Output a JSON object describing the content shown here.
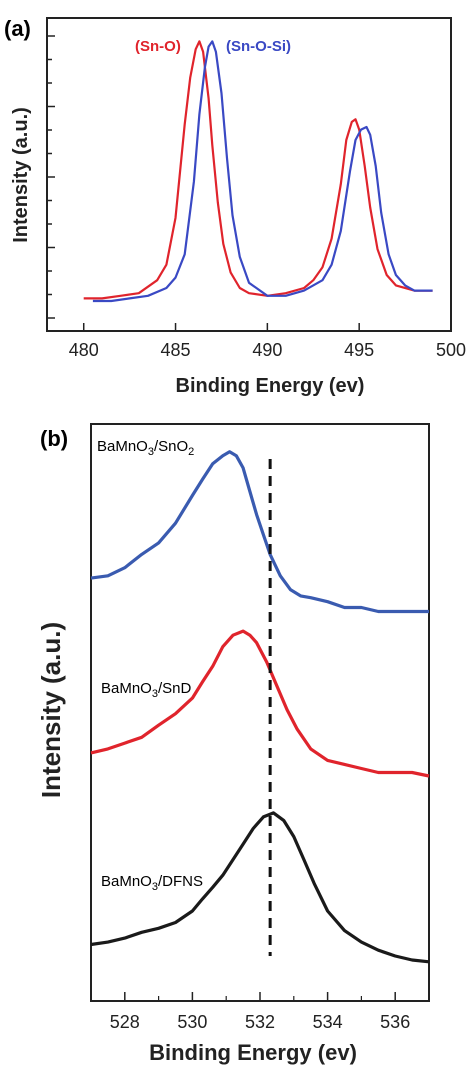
{
  "chart_data": [
    {
      "panel": "(a)",
      "type": "line",
      "xlabel": "Binding Energy (ev)",
      "ylabel": "Intensity (a.u.)",
      "xlim": [
        478,
        500
      ],
      "ylim": [
        0,
        1.09
      ],
      "xticks": [
        480,
        485,
        490,
        495,
        500
      ],
      "y_ticks_labeled": false,
      "grid": false,
      "series": [
        {
          "name": "(Sn-O)",
          "color": "#e0242c",
          "x": [
            480.0,
            481.0,
            482.0,
            483.0,
            484.0,
            484.5,
            485.0,
            485.5,
            485.8,
            486.1,
            486.3,
            486.5,
            486.8,
            487.0,
            487.3,
            487.6,
            488.0,
            488.5,
            489.0,
            490.0,
            491.0,
            492.0,
            492.5,
            493.0,
            493.5,
            494.0,
            494.3,
            494.6,
            494.8,
            495.0,
            495.3,
            495.6,
            496.0,
            496.5,
            497.0,
            498.0,
            499.0
          ],
          "values": [
            0.01,
            0.01,
            0.02,
            0.03,
            0.08,
            0.14,
            0.32,
            0.68,
            0.86,
            0.97,
            1.0,
            0.96,
            0.78,
            0.6,
            0.38,
            0.22,
            0.11,
            0.05,
            0.03,
            0.02,
            0.03,
            0.05,
            0.08,
            0.13,
            0.24,
            0.45,
            0.62,
            0.69,
            0.7,
            0.66,
            0.52,
            0.36,
            0.2,
            0.1,
            0.06,
            0.04,
            0.04
          ]
        },
        {
          "name": "(Sn-O-Si)",
          "color": "#3a49c4",
          "x": [
            480.5,
            481.5,
            482.5,
            483.5,
            484.5,
            485.0,
            485.5,
            486.0,
            486.3,
            486.6,
            486.8,
            487.0,
            487.2,
            487.5,
            487.8,
            488.1,
            488.5,
            489.0,
            490.0,
            491.0,
            492.0,
            493.0,
            493.5,
            494.0,
            494.5,
            494.8,
            495.1,
            495.4,
            495.6,
            495.9,
            496.2,
            496.6,
            497.0,
            497.5,
            498.0,
            499.0
          ],
          "values": [
            0.0,
            0.0,
            0.01,
            0.02,
            0.05,
            0.09,
            0.18,
            0.46,
            0.72,
            0.9,
            0.98,
            1.0,
            0.96,
            0.8,
            0.55,
            0.33,
            0.17,
            0.07,
            0.02,
            0.02,
            0.04,
            0.08,
            0.14,
            0.27,
            0.5,
            0.62,
            0.66,
            0.67,
            0.64,
            0.52,
            0.34,
            0.18,
            0.1,
            0.06,
            0.04,
            0.04
          ]
        }
      ]
    },
    {
      "panel": "(b)",
      "type": "line",
      "xlabel": "Binding Energy (ev)",
      "ylabel": "Intensity (a.u.)",
      "xlim": [
        527,
        537
      ],
      "ylim": [
        0,
        1.0
      ],
      "xticks": [
        528,
        530,
        532,
        534,
        536
      ],
      "y_ticks_labeled": false,
      "grid": false,
      "reference_line_x": 532.3,
      "series": [
        {
          "name": "BaMnO3/SnO2",
          "color": "#3a5bb0",
          "x": [
            527.0,
            527.5,
            528.0,
            528.5,
            529.0,
            529.5,
            530.0,
            530.3,
            530.6,
            530.9,
            531.1,
            531.3,
            531.5,
            531.7,
            531.9,
            532.1,
            532.3,
            532.6,
            532.9,
            533.2,
            533.5,
            534.0,
            534.5,
            535.0,
            535.5,
            536.0,
            536.5,
            537.0
          ],
          "values": [
            0.733,
            0.737,
            0.751,
            0.774,
            0.794,
            0.828,
            0.876,
            0.904,
            0.931,
            0.945,
            0.952,
            0.945,
            0.924,
            0.883,
            0.843,
            0.808,
            0.774,
            0.737,
            0.713,
            0.702,
            0.699,
            0.692,
            0.682,
            0.682,
            0.675,
            0.675,
            0.675,
            0.675
          ]
        },
        {
          "name": "BaMnO3/SnD",
          "color": "#e0242c",
          "x": [
            527.0,
            527.5,
            528.0,
            528.5,
            529.0,
            529.5,
            530.0,
            530.3,
            530.6,
            530.9,
            531.2,
            531.5,
            531.7,
            531.9,
            532.2,
            532.5,
            532.8,
            533.1,
            533.5,
            534.0,
            534.5,
            535.0,
            535.5,
            536.0,
            536.5,
            537.0
          ],
          "values": [
            0.43,
            0.437,
            0.447,
            0.457,
            0.478,
            0.498,
            0.525,
            0.553,
            0.58,
            0.614,
            0.634,
            0.641,
            0.634,
            0.621,
            0.587,
            0.546,
            0.505,
            0.471,
            0.437,
            0.417,
            0.41,
            0.403,
            0.396,
            0.396,
            0.396,
            0.39
          ]
        },
        {
          "name": "BaMnO3/DFNS",
          "color": "#1a1a1a",
          "x": [
            527.0,
            527.5,
            528.0,
            528.5,
            529.0,
            529.5,
            530.0,
            530.3,
            530.6,
            530.9,
            531.2,
            531.5,
            531.8,
            532.1,
            532.4,
            532.7,
            533.0,
            533.3,
            533.6,
            534.0,
            534.5,
            535.0,
            535.5,
            536.0,
            536.5,
            537.0
          ],
          "values": [
            0.098,
            0.102,
            0.109,
            0.119,
            0.126,
            0.136,
            0.156,
            0.177,
            0.197,
            0.218,
            0.245,
            0.272,
            0.299,
            0.319,
            0.326,
            0.313,
            0.285,
            0.245,
            0.204,
            0.156,
            0.122,
            0.102,
            0.088,
            0.078,
            0.071,
            0.068
          ]
        }
      ]
    }
  ],
  "panels": {
    "a": {
      "label": "(a)",
      "ylabel": "Intensity (a.u.)",
      "xlabel": "Binding Energy (ev)",
      "series_labels": [
        "(Sn-O)",
        "(Sn-O-Si)"
      ]
    },
    "b": {
      "label": "(b)",
      "ylabel": "Intensity (a.u.)",
      "xlabel": "Binding Energy (ev)",
      "trace_labels": [
        {
          "base": "BaMnO",
          "sub1": "3",
          "mid": "/SnO",
          "sub2": "2"
        },
        {
          "base": "BaMnO",
          "sub1": "3",
          "mid": "/SnD",
          "sub2": ""
        },
        {
          "base": "BaMnO",
          "sub1": "3",
          "mid": "/DFNS",
          "sub2": ""
        }
      ]
    }
  }
}
